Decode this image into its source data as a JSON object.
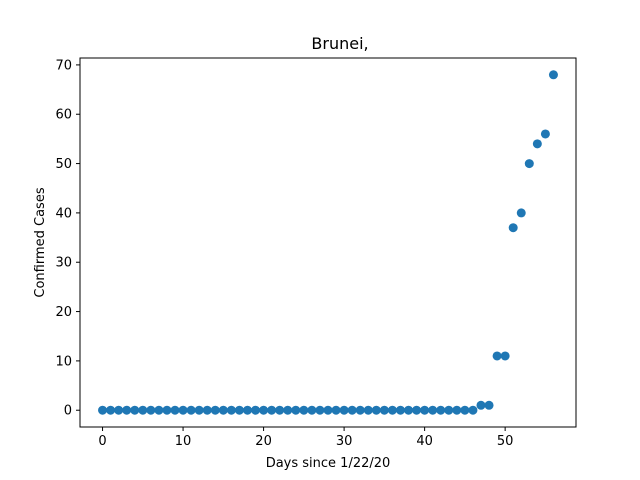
{
  "chart_data": {
    "type": "scatter",
    "title": "Brunei,",
    "xlabel": "Days since 1/22/20",
    "ylabel": "Confirmed Cases",
    "xlim": [
      -2.8,
      58.8
    ],
    "ylim": [
      -3.4,
      71.4
    ],
    "xticks": [
      0,
      10,
      20,
      30,
      40,
      50
    ],
    "yticks": [
      0,
      10,
      20,
      30,
      40,
      50,
      60,
      70
    ],
    "grid": false,
    "marker_color": "#1f77b4",
    "series": [
      {
        "x": [
          0,
          1,
          2,
          3,
          4,
          5,
          6,
          7,
          8,
          9,
          10,
          11,
          12,
          13,
          14,
          15,
          16,
          17,
          18,
          19,
          20,
          21,
          22,
          23,
          24,
          25,
          26,
          27,
          28,
          29,
          30,
          31,
          32,
          33,
          34,
          35,
          36,
          37,
          38,
          39,
          40,
          41,
          42,
          43,
          44,
          45,
          46,
          47,
          48,
          49,
          50,
          51,
          52,
          53,
          54,
          55,
          56
        ],
        "y": [
          0,
          0,
          0,
          0,
          0,
          0,
          0,
          0,
          0,
          0,
          0,
          0,
          0,
          0,
          0,
          0,
          0,
          0,
          0,
          0,
          0,
          0,
          0,
          0,
          0,
          0,
          0,
          0,
          0,
          0,
          0,
          0,
          0,
          0,
          0,
          0,
          0,
          0,
          0,
          0,
          0,
          0,
          0,
          0,
          0,
          0,
          0,
          1,
          1,
          11,
          11,
          37,
          40,
          50,
          54,
          56,
          68
        ]
      }
    ]
  }
}
